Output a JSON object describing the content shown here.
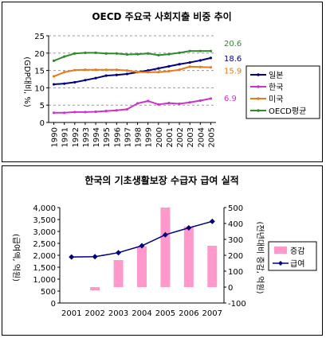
{
  "chart_data": [
    {
      "type": "line",
      "title": "OECD 주요국 사회지출 비중 추이",
      "ylabel": "(GDP대비, %)",
      "xlabel": "",
      "categories": [
        "1990",
        "1991",
        "1992",
        "1993",
        "1994",
        "1995",
        "1996",
        "1997",
        "1998",
        "1999",
        "2000",
        "2001",
        "2002",
        "2003",
        "2004",
        "2005"
      ],
      "yticks": [
        "0",
        "5",
        "10",
        "15",
        "20",
        "25"
      ],
      "ylim": [
        0,
        25
      ],
      "grid": "horizontal dashed",
      "legend_position": "right",
      "series": [
        {
          "name": "일본",
          "color": "#000080",
          "values": [
            11.0,
            11.2,
            11.6,
            12.2,
            12.8,
            13.5,
            13.7,
            14.0,
            14.5,
            15.0,
            15.6,
            16.2,
            16.8,
            17.3,
            17.9,
            18.6
          ]
        },
        {
          "name": "한국",
          "color": "#cc33cc",
          "values": [
            2.8,
            2.8,
            3.0,
            3.0,
            3.1,
            3.3,
            3.5,
            3.8,
            5.5,
            6.2,
            5.2,
            5.6,
            5.4,
            5.8,
            6.3,
            6.9
          ]
        },
        {
          "name": "미국",
          "color": "#e87a1a",
          "values": [
            13.3,
            14.5,
            15.1,
            15.2,
            15.2,
            15.2,
            15.2,
            15.0,
            14.5,
            14.5,
            14.5,
            14.8,
            15.2,
            16.1,
            16.0,
            15.9
          ]
        },
        {
          "name": "OECD평균",
          "color": "#2e8b2e",
          "values": [
            17.8,
            19.0,
            19.9,
            20.1,
            20.1,
            19.9,
            19.9,
            19.6,
            19.7,
            19.9,
            19.4,
            19.7,
            20.1,
            20.6,
            20.6,
            20.6
          ]
        }
      ],
      "end_labels": [
        {
          "text": "20.6",
          "color": "#2e8b2e"
        },
        {
          "text": "18.6",
          "color": "#000080"
        },
        {
          "text": "15.9",
          "color": "#e87a1a"
        },
        {
          "text": "6.9",
          "color": "#cc33cc"
        }
      ]
    },
    {
      "type": "bar",
      "title": "한국의 기초생활보장 수급자 급여 실적",
      "ylabel": "(급여액, 억원)",
      "y2label": "(전년대비 증감, 억원)",
      "categories": [
        "2001",
        "2002",
        "2003",
        "2004",
        "2005",
        "2006",
        "2007"
      ],
      "yticks": [
        "0",
        "500",
        "1,000",
        "1,500",
        "2,000",
        "2,500",
        "3,000",
        "3,500",
        "4,000"
      ],
      "y2ticks": [
        "-100",
        "0",
        "100",
        "200",
        "300",
        "400",
        "500"
      ],
      "ylim": [
        0,
        4000
      ],
      "y2lim": [
        -100,
        500
      ],
      "legend_position": "right",
      "series": [
        {
          "name": "증감",
          "type": "bar",
          "axis": "right",
          "color": "#ff99cc",
          "values": [
            null,
            -20,
            170,
            255,
            500,
            380,
            260
          ]
        },
        {
          "name": "급여",
          "type": "line",
          "axis": "left",
          "color": "#000080",
          "values": [
            1930,
            1940,
            2110,
            2400,
            2860,
            3150,
            3420
          ]
        }
      ]
    }
  ]
}
